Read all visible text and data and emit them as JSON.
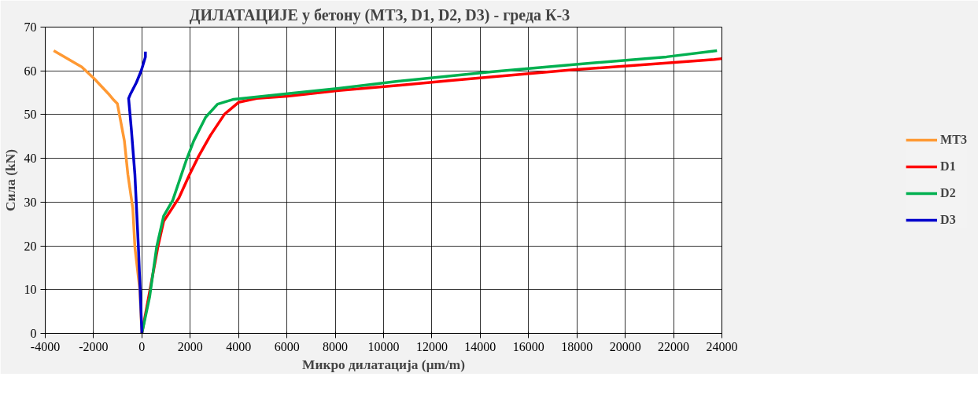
{
  "chart_data": {
    "type": "line",
    "title": "ДИЛАТАЦИЈЕ у бетону (МТ3, D1, D2, D3)  -  греда К-3",
    "xlabel": "Микро дилатација (μm/m)",
    "ylabel": "Сила (kN)",
    "xlim": [
      -4000,
      24000
    ],
    "ylim": [
      0,
      70
    ],
    "xticks": [
      -4000,
      -2000,
      0,
      2000,
      4000,
      6000,
      8000,
      10000,
      12000,
      14000,
      16000,
      18000,
      20000,
      22000,
      24000
    ],
    "yticks": [
      0,
      10,
      20,
      30,
      40,
      50,
      60,
      70
    ],
    "grid": true,
    "legend": "right",
    "marker": "none",
    "line_style": "solid",
    "series": [
      {
        "name": "МТ3",
        "color": "#ff9933",
        "x": [
          0,
          -87,
          -290,
          -377,
          -580,
          -725,
          -1015,
          -1160,
          -1390,
          -1970,
          -2490,
          -3650
        ],
        "values": [
          0,
          10,
          19.7,
          28.6,
          36.3,
          44,
          52.5,
          53.3,
          54.8,
          58.2,
          60.9,
          64.6
        ]
      },
      {
        "name": "D1",
        "color": "#ff0000",
        "x": [
          0,
          319,
          660,
          899,
          1536,
          1971,
          2348,
          2840,
          3420,
          4000,
          4753,
          6029,
          8145,
          10696,
          12783,
          17768,
          21710,
          23681,
          24000
        ],
        "values": [
          0,
          9.5,
          19.7,
          25.6,
          31,
          36.3,
          40.5,
          45.3,
          50.1,
          52.8,
          53.7,
          54.2,
          55.5,
          56.7,
          57.8,
          60.2,
          61.8,
          62.6,
          62.8
        ]
      },
      {
        "name": "D2",
        "color": "#00b050",
        "x": [
          0,
          319,
          609,
          899,
          1275,
          1826,
          2145,
          2638,
          3130,
          3797,
          6029,
          8145,
          10580,
          14522,
          17768,
          21710,
          23797
        ],
        "values": [
          0,
          8.3,
          19.7,
          26.8,
          30.4,
          39.4,
          44,
          49.4,
          52.4,
          53.5,
          54.8,
          56,
          57.6,
          59.8,
          61.4,
          63.2,
          64.6
        ]
      },
      {
        "name": "D3",
        "color": "#0000cc",
        "x": [
          0,
          -145,
          -290,
          -435,
          -550,
          -465,
          -230,
          -30,
          145,
          145
        ],
        "values": [
          0,
          19.7,
          36.3,
          46.5,
          53.7,
          54.8,
          57.3,
          60,
          63.2,
          64.4
        ]
      }
    ]
  }
}
